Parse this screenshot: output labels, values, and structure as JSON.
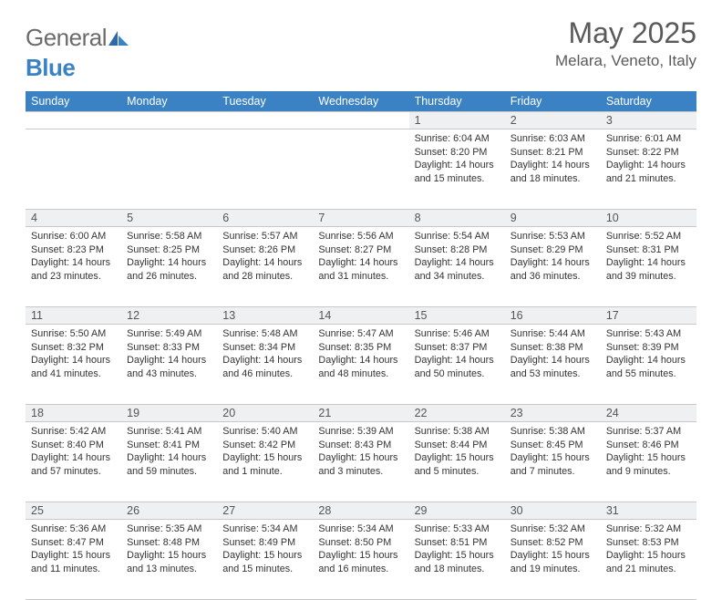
{
  "logo": {
    "general": "General",
    "blue": "Blue"
  },
  "title": "May 2025",
  "location": "Melara, Veneto, Italy",
  "colors": {
    "header_bg": "#3b82c4",
    "daynum_bg": "#eef0f2",
    "border": "#c8c8c8",
    "text": "#333333",
    "title_text": "#5a5a5a"
  },
  "typography": {
    "title_fontsize": 32,
    "location_fontsize": 17,
    "header_fontsize": 12.5,
    "cell_fontsize": 10.8
  },
  "weekdays": [
    "Sunday",
    "Monday",
    "Tuesday",
    "Wednesday",
    "Thursday",
    "Friday",
    "Saturday"
  ],
  "weeks": [
    [
      null,
      null,
      null,
      null,
      {
        "day": "1",
        "sunrise": "Sunrise: 6:04 AM",
        "sunset": "Sunset: 8:20 PM",
        "daylight": "Daylight: 14 hours and 15 minutes."
      },
      {
        "day": "2",
        "sunrise": "Sunrise: 6:03 AM",
        "sunset": "Sunset: 8:21 PM",
        "daylight": "Daylight: 14 hours and 18 minutes."
      },
      {
        "day": "3",
        "sunrise": "Sunrise: 6:01 AM",
        "sunset": "Sunset: 8:22 PM",
        "daylight": "Daylight: 14 hours and 21 minutes."
      }
    ],
    [
      {
        "day": "4",
        "sunrise": "Sunrise: 6:00 AM",
        "sunset": "Sunset: 8:23 PM",
        "daylight": "Daylight: 14 hours and 23 minutes."
      },
      {
        "day": "5",
        "sunrise": "Sunrise: 5:58 AM",
        "sunset": "Sunset: 8:25 PM",
        "daylight": "Daylight: 14 hours and 26 minutes."
      },
      {
        "day": "6",
        "sunrise": "Sunrise: 5:57 AM",
        "sunset": "Sunset: 8:26 PM",
        "daylight": "Daylight: 14 hours and 28 minutes."
      },
      {
        "day": "7",
        "sunrise": "Sunrise: 5:56 AM",
        "sunset": "Sunset: 8:27 PM",
        "daylight": "Daylight: 14 hours and 31 minutes."
      },
      {
        "day": "8",
        "sunrise": "Sunrise: 5:54 AM",
        "sunset": "Sunset: 8:28 PM",
        "daylight": "Daylight: 14 hours and 34 minutes."
      },
      {
        "day": "9",
        "sunrise": "Sunrise: 5:53 AM",
        "sunset": "Sunset: 8:29 PM",
        "daylight": "Daylight: 14 hours and 36 minutes."
      },
      {
        "day": "10",
        "sunrise": "Sunrise: 5:52 AM",
        "sunset": "Sunset: 8:31 PM",
        "daylight": "Daylight: 14 hours and 39 minutes."
      }
    ],
    [
      {
        "day": "11",
        "sunrise": "Sunrise: 5:50 AM",
        "sunset": "Sunset: 8:32 PM",
        "daylight": "Daylight: 14 hours and 41 minutes."
      },
      {
        "day": "12",
        "sunrise": "Sunrise: 5:49 AM",
        "sunset": "Sunset: 8:33 PM",
        "daylight": "Daylight: 14 hours and 43 minutes."
      },
      {
        "day": "13",
        "sunrise": "Sunrise: 5:48 AM",
        "sunset": "Sunset: 8:34 PM",
        "daylight": "Daylight: 14 hours and 46 minutes."
      },
      {
        "day": "14",
        "sunrise": "Sunrise: 5:47 AM",
        "sunset": "Sunset: 8:35 PM",
        "daylight": "Daylight: 14 hours and 48 minutes."
      },
      {
        "day": "15",
        "sunrise": "Sunrise: 5:46 AM",
        "sunset": "Sunset: 8:37 PM",
        "daylight": "Daylight: 14 hours and 50 minutes."
      },
      {
        "day": "16",
        "sunrise": "Sunrise: 5:44 AM",
        "sunset": "Sunset: 8:38 PM",
        "daylight": "Daylight: 14 hours and 53 minutes."
      },
      {
        "day": "17",
        "sunrise": "Sunrise: 5:43 AM",
        "sunset": "Sunset: 8:39 PM",
        "daylight": "Daylight: 14 hours and 55 minutes."
      }
    ],
    [
      {
        "day": "18",
        "sunrise": "Sunrise: 5:42 AM",
        "sunset": "Sunset: 8:40 PM",
        "daylight": "Daylight: 14 hours and 57 minutes."
      },
      {
        "day": "19",
        "sunrise": "Sunrise: 5:41 AM",
        "sunset": "Sunset: 8:41 PM",
        "daylight": "Daylight: 14 hours and 59 minutes."
      },
      {
        "day": "20",
        "sunrise": "Sunrise: 5:40 AM",
        "sunset": "Sunset: 8:42 PM",
        "daylight": "Daylight: 15 hours and 1 minute."
      },
      {
        "day": "21",
        "sunrise": "Sunrise: 5:39 AM",
        "sunset": "Sunset: 8:43 PM",
        "daylight": "Daylight: 15 hours and 3 minutes."
      },
      {
        "day": "22",
        "sunrise": "Sunrise: 5:38 AM",
        "sunset": "Sunset: 8:44 PM",
        "daylight": "Daylight: 15 hours and 5 minutes."
      },
      {
        "day": "23",
        "sunrise": "Sunrise: 5:38 AM",
        "sunset": "Sunset: 8:45 PM",
        "daylight": "Daylight: 15 hours and 7 minutes."
      },
      {
        "day": "24",
        "sunrise": "Sunrise: 5:37 AM",
        "sunset": "Sunset: 8:46 PM",
        "daylight": "Daylight: 15 hours and 9 minutes."
      }
    ],
    [
      {
        "day": "25",
        "sunrise": "Sunrise: 5:36 AM",
        "sunset": "Sunset: 8:47 PM",
        "daylight": "Daylight: 15 hours and 11 minutes."
      },
      {
        "day": "26",
        "sunrise": "Sunrise: 5:35 AM",
        "sunset": "Sunset: 8:48 PM",
        "daylight": "Daylight: 15 hours and 13 minutes."
      },
      {
        "day": "27",
        "sunrise": "Sunrise: 5:34 AM",
        "sunset": "Sunset: 8:49 PM",
        "daylight": "Daylight: 15 hours and 15 minutes."
      },
      {
        "day": "28",
        "sunrise": "Sunrise: 5:34 AM",
        "sunset": "Sunset: 8:50 PM",
        "daylight": "Daylight: 15 hours and 16 minutes."
      },
      {
        "day": "29",
        "sunrise": "Sunrise: 5:33 AM",
        "sunset": "Sunset: 8:51 PM",
        "daylight": "Daylight: 15 hours and 18 minutes."
      },
      {
        "day": "30",
        "sunrise": "Sunrise: 5:32 AM",
        "sunset": "Sunset: 8:52 PM",
        "daylight": "Daylight: 15 hours and 19 minutes."
      },
      {
        "day": "31",
        "sunrise": "Sunrise: 5:32 AM",
        "sunset": "Sunset: 8:53 PM",
        "daylight": "Daylight: 15 hours and 21 minutes."
      }
    ]
  ]
}
